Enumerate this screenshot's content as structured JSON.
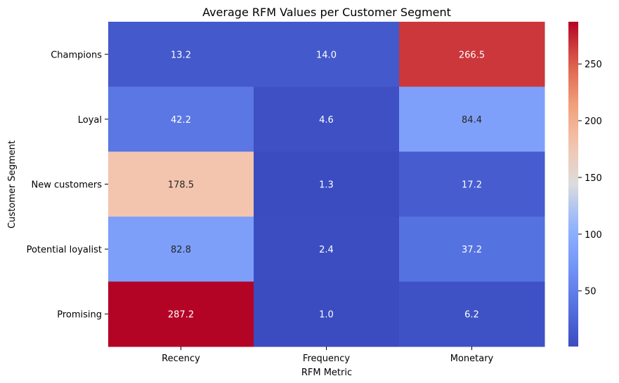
{
  "chart_data": {
    "type": "heatmap",
    "title": "Average RFM Values per Customer Segment",
    "xlabel": "RFM Metric",
    "ylabel": "Customer Segment",
    "x_categories": [
      "Recency",
      "Frequency",
      "Monetary"
    ],
    "y_categories": [
      "Champions",
      "Loyal",
      "New customers",
      "Potential loyalist",
      "Promising"
    ],
    "values": [
      [
        13.2,
        14.0,
        266.5
      ],
      [
        42.2,
        4.6,
        84.4
      ],
      [
        178.5,
        1.3,
        17.2
      ],
      [
        82.8,
        2.4,
        37.2
      ],
      [
        287.2,
        1.0,
        6.2
      ]
    ],
    "value_labels": [
      [
        "13.2",
        "14.0",
        "266.5"
      ],
      [
        "42.2",
        "4.6",
        "84.4"
      ],
      [
        "178.5",
        "1.3",
        "17.2"
      ],
      [
        "82.8",
        "2.4",
        "37.2"
      ],
      [
        "287.2",
        "1.0",
        "6.2"
      ]
    ],
    "colormap": "coolwarm",
    "colorbar": {
      "range": [
        1.0,
        287.2
      ],
      "ticks": [
        50,
        100,
        150,
        200,
        250
      ],
      "tick_labels": [
        "50",
        "100",
        "150",
        "200",
        "250"
      ]
    },
    "grid": false,
    "legend": "colorbar-right"
  }
}
